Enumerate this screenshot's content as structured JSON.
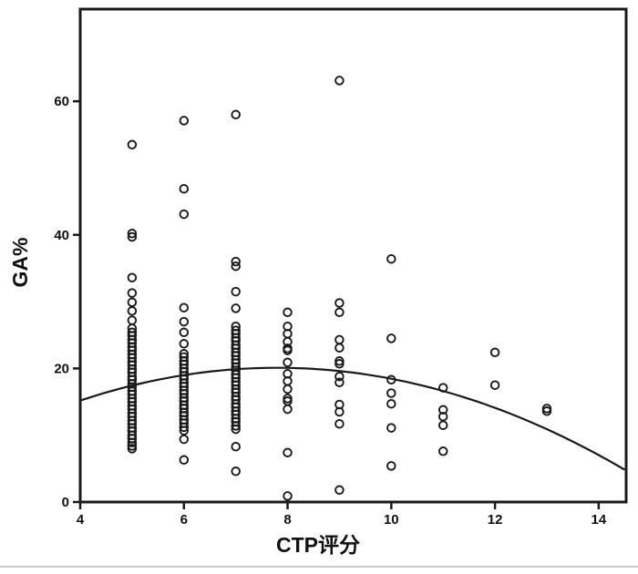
{
  "figure": {
    "xlabel": "CTP评分",
    "ylabel": "GA%"
  },
  "chart_data": {
    "type": "scatter",
    "title": "",
    "xlabel": "CTP评分",
    "ylabel": "GA%",
    "x_axis": {
      "min": 4,
      "max": 14.53,
      "ticks": [
        4,
        6,
        8,
        10,
        12,
        14
      ]
    },
    "y_axis": {
      "min": 0,
      "max": 73.8,
      "ticks": [
        0,
        20,
        40,
        60
      ]
    },
    "grid": false,
    "legend": false,
    "marker": "open-circle",
    "colors": {
      "stroke": "#1a1a1a",
      "background": "#ffffff"
    },
    "fit_curve": {
      "type": "quadratic",
      "equation": "GA% = 20.1 - 0.34*(CTP-7.8)^2",
      "peak": [
        7.8,
        20.1
      ],
      "a": -0.34,
      "domain": [
        4,
        14.53
      ]
    },
    "points": [
      [
        5,
        53.5
      ],
      [
        5,
        40.2
      ],
      [
        5,
        39.7
      ],
      [
        5,
        33.6
      ],
      [
        5,
        31.3
      ],
      [
        5,
        29.9
      ],
      [
        5,
        28.6
      ],
      [
        5,
        27.2
      ],
      [
        5,
        26.0
      ],
      [
        5,
        25.4
      ],
      [
        5,
        24.9
      ],
      [
        5,
        24.3
      ],
      [
        5,
        23.8
      ],
      [
        5,
        23.2
      ],
      [
        5,
        22.7
      ],
      [
        5,
        22.1
      ],
      [
        5,
        21.6
      ],
      [
        5,
        21.0
      ],
      [
        5,
        20.5
      ],
      [
        5,
        19.9
      ],
      [
        5,
        19.4
      ],
      [
        5,
        18.8
      ],
      [
        5,
        18.3
      ],
      [
        5,
        17.7
      ],
      [
        5,
        17.2
      ],
      [
        5,
        16.6
      ],
      [
        5,
        16.1
      ],
      [
        5,
        15.5
      ],
      [
        5,
        15.0
      ],
      [
        5,
        14.4
      ],
      [
        5,
        13.9
      ],
      [
        5,
        13.3
      ],
      [
        5,
        12.8
      ],
      [
        5,
        12.2
      ],
      [
        5,
        11.7
      ],
      [
        5,
        11.1
      ],
      [
        5,
        10.6
      ],
      [
        5,
        10.0
      ],
      [
        5,
        9.5
      ],
      [
        5,
        8.9
      ],
      [
        5,
        8.4
      ],
      [
        5,
        8.0
      ],
      [
        6,
        57.1
      ],
      [
        6,
        46.9
      ],
      [
        6,
        43.1
      ],
      [
        6,
        29.1
      ],
      [
        6,
        27.0
      ],
      [
        6,
        25.4
      ],
      [
        6,
        23.7
      ],
      [
        6,
        22.2
      ],
      [
        6,
        21.7
      ],
      [
        6,
        21.1
      ],
      [
        6,
        20.6
      ],
      [
        6,
        20.0
      ],
      [
        6,
        19.5
      ],
      [
        6,
        18.9
      ],
      [
        6,
        18.4
      ],
      [
        6,
        17.8
      ],
      [
        6,
        17.3
      ],
      [
        6,
        16.7
      ],
      [
        6,
        16.2
      ],
      [
        6,
        15.6
      ],
      [
        6,
        15.1
      ],
      [
        6,
        14.5
      ],
      [
        6,
        14.0
      ],
      [
        6,
        13.4
      ],
      [
        6,
        12.9
      ],
      [
        6,
        12.3
      ],
      [
        6,
        11.8
      ],
      [
        6,
        11.2
      ],
      [
        6,
        10.7
      ],
      [
        6,
        9.4
      ],
      [
        6,
        6.3
      ],
      [
        7,
        58.0
      ],
      [
        7,
        36.0
      ],
      [
        7,
        35.3
      ],
      [
        7,
        31.5
      ],
      [
        7,
        29.0
      ],
      [
        7,
        26.3
      ],
      [
        7,
        25.7
      ],
      [
        7,
        25.2
      ],
      [
        7,
        24.6
      ],
      [
        7,
        24.1
      ],
      [
        7,
        23.5
      ],
      [
        7,
        23.0
      ],
      [
        7,
        22.4
      ],
      [
        7,
        21.9
      ],
      [
        7,
        21.3
      ],
      [
        7,
        20.8
      ],
      [
        7,
        20.2
      ],
      [
        7,
        19.7
      ],
      [
        7,
        19.1
      ],
      [
        7,
        18.6
      ],
      [
        7,
        18.0
      ],
      [
        7,
        17.5
      ],
      [
        7,
        16.9
      ],
      [
        7,
        16.4
      ],
      [
        7,
        15.8
      ],
      [
        7,
        15.3
      ],
      [
        7,
        14.7
      ],
      [
        7,
        14.2
      ],
      [
        7,
        13.6
      ],
      [
        7,
        13.1
      ],
      [
        7,
        12.5
      ],
      [
        7,
        12.0
      ],
      [
        7,
        11.4
      ],
      [
        7,
        10.9
      ],
      [
        7,
        8.3
      ],
      [
        7,
        4.6
      ],
      [
        8,
        28.4
      ],
      [
        8,
        26.3
      ],
      [
        8,
        25.2
      ],
      [
        8,
        24.0
      ],
      [
        8,
        23.0
      ],
      [
        8,
        22.7
      ],
      [
        8,
        20.9
      ],
      [
        8,
        19.2
      ],
      [
        8,
        18.1
      ],
      [
        8,
        16.9
      ],
      [
        8,
        15.5
      ],
      [
        8,
        15.1
      ],
      [
        8,
        13.9
      ],
      [
        8,
        7.4
      ],
      [
        8,
        0.9
      ],
      [
        9,
        63.1
      ],
      [
        9,
        29.8
      ],
      [
        9,
        28.4
      ],
      [
        9,
        24.3
      ],
      [
        9,
        23.1
      ],
      [
        9,
        21.1
      ],
      [
        9,
        20.7
      ],
      [
        9,
        18.8
      ],
      [
        9,
        17.9
      ],
      [
        9,
        14.6
      ],
      [
        9,
        13.5
      ],
      [
        9,
        11.7
      ],
      [
        9,
        1.8
      ],
      [
        10,
        36.4
      ],
      [
        10,
        24.5
      ],
      [
        10,
        18.3
      ],
      [
        10,
        16.3
      ],
      [
        10,
        14.7
      ],
      [
        10,
        11.1
      ],
      [
        10,
        5.4
      ],
      [
        11,
        17.1
      ],
      [
        11,
        13.8
      ],
      [
        11,
        12.8
      ],
      [
        11,
        11.5
      ],
      [
        11,
        7.6
      ],
      [
        12,
        22.4
      ],
      [
        12,
        17.5
      ],
      [
        13,
        14.0
      ],
      [
        13,
        13.6
      ]
    ]
  }
}
